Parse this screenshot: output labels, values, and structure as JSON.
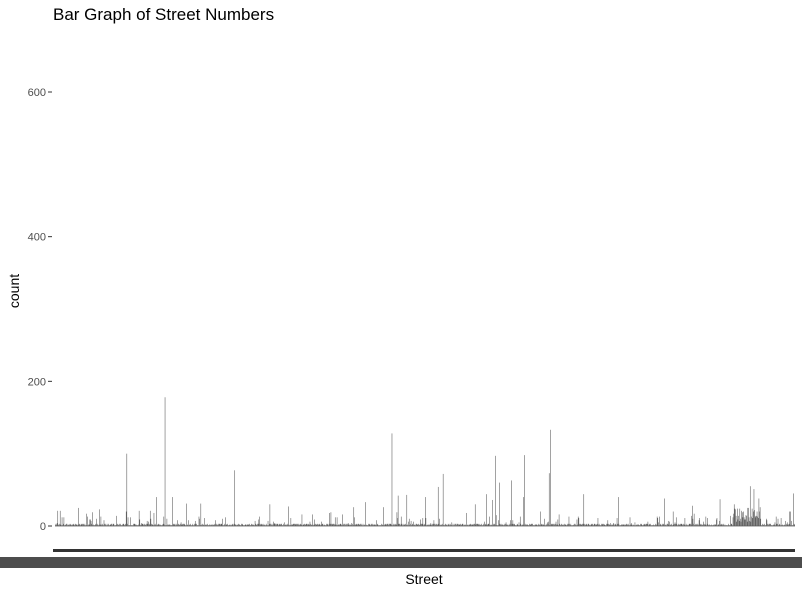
{
  "chart_data": {
    "type": "bar",
    "title": "Bar Graph of Street Numbers",
    "xlabel": "Street",
    "ylabel": "count",
    "ylim": [
      0,
      660
    ],
    "yticks": [
      0,
      200,
      400,
      600
    ],
    "grid": false,
    "bar_color": "#595959",
    "category_count": 1200,
    "categories_note_hidden": true,
    "peaks": [
      {
        "i": 8,
        "v": 21
      },
      {
        "i": 38,
        "v": 25
      },
      {
        "i": 60,
        "v": 19
      },
      {
        "i": 72,
        "v": 23
      },
      {
        "i": 116,
        "v": 100
      },
      {
        "i": 164,
        "v": 40
      },
      {
        "i": 178,
        "v": 178
      },
      {
        "i": 190,
        "v": 40
      },
      {
        "i": 213,
        "v": 31
      },
      {
        "i": 236,
        "v": 31
      },
      {
        "i": 291,
        "v": 77
      },
      {
        "i": 348,
        "v": 30
      },
      {
        "i": 378,
        "v": 27
      },
      {
        "i": 484,
        "v": 26
      },
      {
        "i": 503,
        "v": 33
      },
      {
        "i": 532,
        "v": 26
      },
      {
        "i": 546,
        "v": 128
      },
      {
        "i": 556,
        "v": 42
      },
      {
        "i": 570,
        "v": 43
      },
      {
        "i": 600,
        "v": 40
      },
      {
        "i": 621,
        "v": 54
      },
      {
        "i": 629,
        "v": 72
      },
      {
        "i": 681,
        "v": 30
      },
      {
        "i": 699,
        "v": 44
      },
      {
        "i": 709,
        "v": 36
      },
      {
        "i": 714,
        "v": 97
      },
      {
        "i": 720,
        "v": 60
      },
      {
        "i": 740,
        "v": 63
      },
      {
        "i": 759,
        "v": 40
      },
      {
        "i": 761,
        "v": 98
      },
      {
        "i": 801,
        "v": 73
      },
      {
        "i": 803,
        "v": 133
      },
      {
        "i": 857,
        "v": 44
      },
      {
        "i": 913,
        "v": 40
      },
      {
        "i": 988,
        "v": 38
      },
      {
        "i": 1033,
        "v": 28
      },
      {
        "i": 1078,
        "v": 37
      },
      {
        "i": 1101,
        "v": 30
      },
      {
        "i": 1127,
        "v": 55
      },
      {
        "i": 1133,
        "v": 51
      },
      {
        "i": 1141,
        "v": 38
      },
      {
        "i": 1197,
        "v": 45
      }
    ]
  }
}
